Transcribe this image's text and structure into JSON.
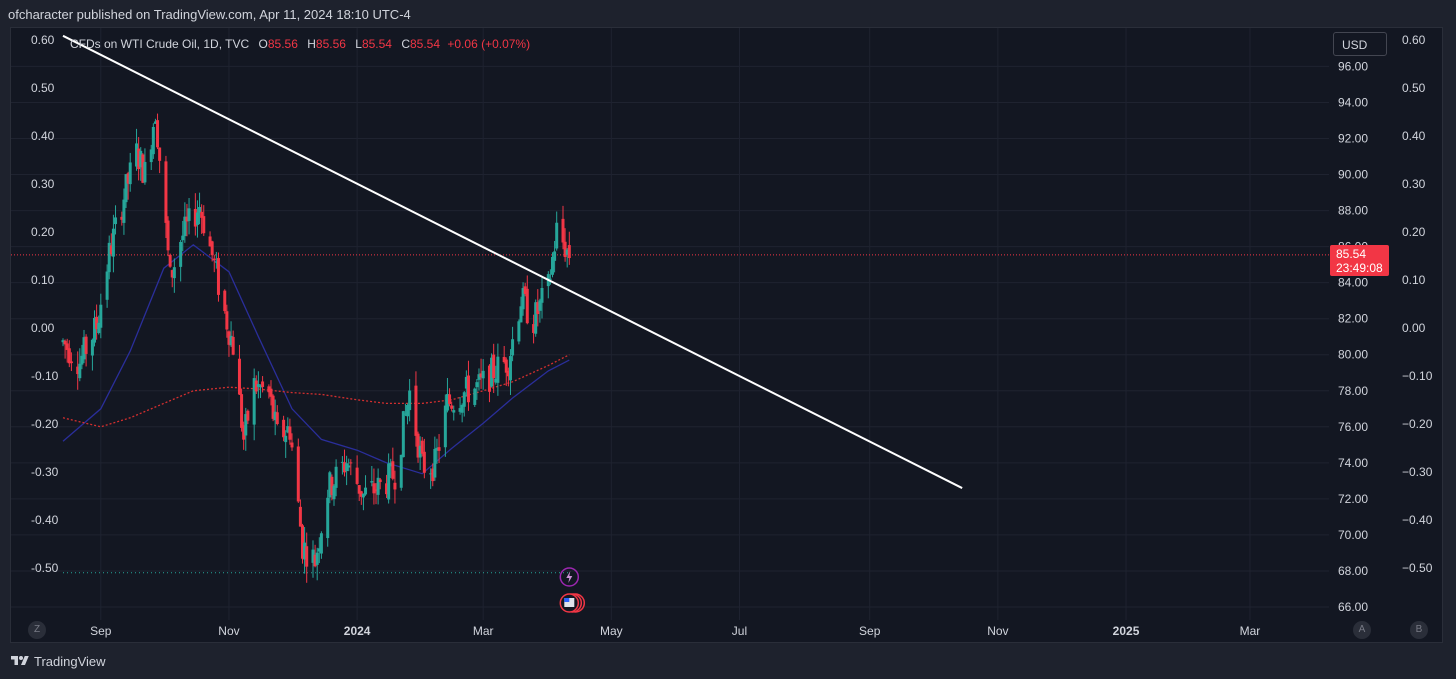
{
  "header": {
    "publish_text": "ofcharacter published on TradingView.com, Apr 11, 2024 18:10 UTC-4"
  },
  "legend": {
    "symbol": "CFDs on WTI Crude Oil, 1D, TVC",
    "o_label": "O",
    "o_value": "85.56",
    "h_label": "H",
    "h_value": "85.56",
    "l_label": "L",
    "l_value": "85.54",
    "c_label": "C",
    "c_value": "85.54",
    "change": "+0.06 (+0.07%)"
  },
  "currency_button": "USD",
  "last_price": {
    "price": "85.54",
    "countdown": "23:49:08"
  },
  "axis_buttons": {
    "left": "Z",
    "auto": "A",
    "brush": "B"
  },
  "footer": {
    "brand": "TradingView"
  },
  "colors": {
    "background": "#131722",
    "grid": "#1f2330",
    "up": "#26a69a",
    "down": "#f23645",
    "ma_fast": "#2a2e9a",
    "ma_slow": "#d32f2f",
    "trendline": "#ffffff",
    "text": "#d1d4dc"
  },
  "chart_data": {
    "type": "candlestick",
    "title": "CFDs on WTI Crude Oil, 1D, TVC",
    "y_right": {
      "ticks": [
        "96.00",
        "94.00",
        "92.00",
        "90.00",
        "88.00",
        "86.00",
        "84.00",
        "82.00",
        "80.00",
        "78.00",
        "76.00",
        "74.00",
        "72.00",
        "70.00",
        "68.00",
        "66.00"
      ],
      "range": [
        65.5,
        97.8
      ]
    },
    "y_left": {
      "ticks": [
        "0.60",
        "0.50",
        "0.40",
        "0.30",
        "0.20",
        "0.10",
        "0.00",
        "-0.10",
        "-0.20",
        "-0.30",
        "-0.40",
        "-0.50"
      ],
      "range": [
        -0.5,
        0.6
      ]
    },
    "y_outer_right": {
      "ticks": [
        "0.60",
        "0.50",
        "0.40",
        "0.30",
        "0.20",
        "0.10",
        "0.00",
        "−0.10",
        "−0.20",
        "−0.30",
        "−0.40",
        "−0.50"
      ]
    },
    "x_ticks": [
      "Sep",
      "Nov",
      "2024",
      "Mar",
      "May",
      "Jul",
      "Sep",
      "Nov",
      "2025",
      "Mar"
    ],
    "x_tick_dates": [
      "2023-09-01",
      "2023-11-01",
      "2024-01-01",
      "2024-03-01",
      "2024-05-01",
      "2024-07-01",
      "2024-09-01",
      "2024-11-01",
      "2025-01-01",
      "2025-03-01"
    ],
    "x_start": "2023-08-14",
    "x_end": "2025-03-31",
    "price_waypoints": [
      [
        "2023-08-14",
        80.7
      ],
      [
        "2023-08-22",
        79.6
      ],
      [
        "2023-08-30",
        81.6
      ],
      [
        "2023-09-05",
        85.6
      ],
      [
        "2023-09-12",
        88.8
      ],
      [
        "2023-09-18",
        91.2
      ],
      [
        "2023-09-22",
        90.1
      ],
      [
        "2023-09-27",
        93.6
      ],
      [
        "2023-10-04",
        84.2
      ],
      [
        "2023-10-09",
        86.4
      ],
      [
        "2023-10-18",
        88.3
      ],
      [
        "2023-10-24",
        85.5
      ],
      [
        "2023-10-30",
        82.3
      ],
      [
        "2023-11-03",
        80.5
      ],
      [
        "2023-11-08",
        75.3
      ],
      [
        "2023-11-13",
        78.3
      ],
      [
        "2023-11-20",
        77.8
      ],
      [
        "2023-11-24",
        75.5
      ],
      [
        "2023-11-30",
        75.9
      ],
      [
        "2023-12-06",
        69.4
      ],
      [
        "2023-12-12",
        68.6
      ],
      [
        "2023-12-18",
        72.5
      ],
      [
        "2023-12-27",
        74.1
      ],
      [
        "2024-01-04",
        72.2
      ],
      [
        "2024-01-12",
        72.7
      ],
      [
        "2024-01-19",
        73.4
      ],
      [
        "2024-01-26",
        77.9
      ],
      [
        "2024-02-01",
        73.8
      ],
      [
        "2024-02-07",
        73.9
      ],
      [
        "2024-02-13",
        77.3
      ],
      [
        "2024-02-21",
        77.9
      ],
      [
        "2024-02-29",
        78.3
      ],
      [
        "2024-03-06",
        79.1
      ],
      [
        "2024-03-13",
        79.7
      ],
      [
        "2024-03-19",
        83.1
      ],
      [
        "2024-03-25",
        81.9
      ],
      [
        "2024-04-01",
        83.7
      ],
      [
        "2024-04-05",
        86.9
      ],
      [
        "2024-04-11",
        85.54
      ]
    ],
    "ma_fast_waypoints": [
      [
        "2023-08-14",
        75.2
      ],
      [
        "2023-09-01",
        77.0
      ],
      [
        "2023-09-15",
        80.2
      ],
      [
        "2023-10-01",
        84.8
      ],
      [
        "2023-10-15",
        86.1
      ],
      [
        "2023-11-01",
        84.6
      ],
      [
        "2023-11-15",
        81.0
      ],
      [
        "2023-12-01",
        77.0
      ],
      [
        "2023-12-15",
        75.3
      ],
      [
        "2024-01-01",
        74.7
      ],
      [
        "2024-01-15",
        74.0
      ],
      [
        "2024-02-01",
        73.4
      ],
      [
        "2024-02-15",
        74.8
      ],
      [
        "2024-03-01",
        76.2
      ],
      [
        "2024-03-15",
        77.6
      ],
      [
        "2024-04-01",
        79.1
      ],
      [
        "2024-04-11",
        79.7
      ]
    ],
    "ma_slow_waypoints": [
      [
        "2023-08-14",
        76.5
      ],
      [
        "2023-09-01",
        76.0
      ],
      [
        "2023-09-15",
        76.5
      ],
      [
        "2023-10-01",
        77.3
      ],
      [
        "2023-10-15",
        78.0
      ],
      [
        "2023-11-01",
        78.2
      ],
      [
        "2023-11-15",
        78.1
      ],
      [
        "2023-12-01",
        77.9
      ],
      [
        "2023-12-15",
        77.8
      ],
      [
        "2024-01-01",
        77.5
      ],
      [
        "2024-01-15",
        77.3
      ],
      [
        "2024-02-01",
        77.3
      ],
      [
        "2024-02-15",
        77.5
      ],
      [
        "2024-03-01",
        78.0
      ],
      [
        "2024-03-15",
        78.5
      ],
      [
        "2024-04-01",
        79.4
      ],
      [
        "2024-04-11",
        80.0
      ]
    ],
    "trendline": {
      "from": [
        "2023-08-14",
        97.7
      ],
      "to": [
        "2024-10-15",
        72.6
      ]
    },
    "last_price_line": 85.54,
    "low_level_line": 67.9
  }
}
